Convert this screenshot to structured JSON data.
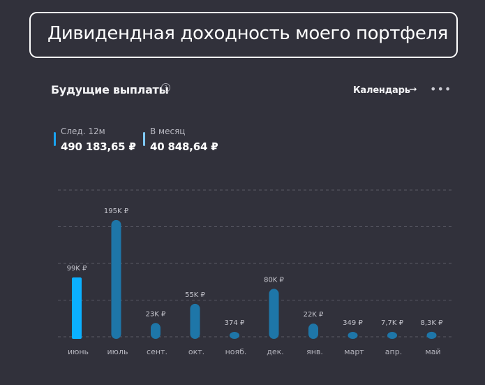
{
  "banner": {
    "title": "Дивидендная доходность моего портфеля"
  },
  "widget": {
    "title": "Будущие выплаты",
    "help_icon": "question-circle-icon",
    "calendar_label": "Календарь",
    "arrow_icon": "arrow-right-icon",
    "more_icon": "more-dots-icon"
  },
  "stats": [
    {
      "label": "След. 12м",
      "value": "490 183,65 ₽",
      "color": "#1aa3f0"
    },
    {
      "label": "В месяц",
      "value": "40 848,64 ₽",
      "color": "#7fc8f5"
    }
  ],
  "colors": {
    "active_bar": "#0bb0ff",
    "bar": "#1e76a8",
    "grid": "#5a5a66",
    "background": "#31313b"
  },
  "chart_data": {
    "type": "bar",
    "categories": [
      "июнь",
      "июль",
      "сент.",
      "окт.",
      "нояб.",
      "дек.",
      "янв.",
      "март",
      "апр.",
      "май"
    ],
    "values": [
      99000,
      195000,
      23000,
      55000,
      374,
      80000,
      22000,
      349,
      7700,
      8300
    ],
    "value_labels": [
      "99K ₽",
      "195K ₽",
      "23K ₽",
      "55K ₽",
      "374 ₽",
      "80K ₽",
      "22K ₽",
      "349 ₽",
      "7,7K ₽",
      "8,3K ₽"
    ],
    "highlighted_index": 0,
    "ylim": [
      0,
      245000
    ],
    "grid": true
  }
}
